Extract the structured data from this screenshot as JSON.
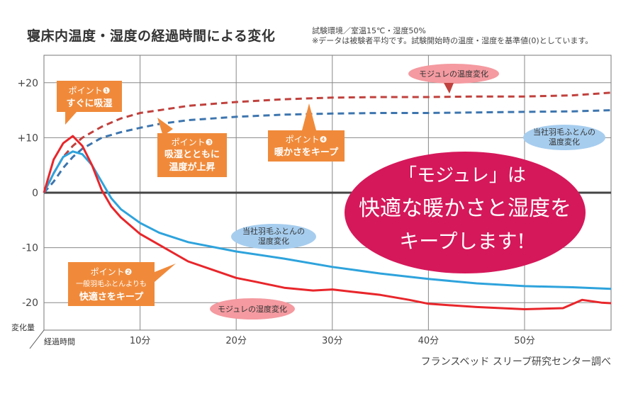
{
  "header": {
    "title": "寝床内温度・湿度の経過時間による変化",
    "note1": "試験環境／室温15℃・湿度50%",
    "note2": "※データは被験者平均です。試験開始時の温度・湿度を基準値(0)としています。"
  },
  "credit": "フランスベッド スリープ研究センター調べ",
  "callouts": {
    "p1_title": "ポイント❶",
    "p1_text": "すぐに吸湿",
    "p2_title": "ポイント❷",
    "p2_text1": "一般羽毛ふとんよりも",
    "p2_text2": "快適さをキープ",
    "p3_title": "ポイント❸",
    "p3_text1": "吸湿とともに",
    "p3_text2": "温度が上昇",
    "p4_title": "ポイント❹",
    "p4_text": "暖かさをキープ"
  },
  "ellipse": {
    "line1": "「モジュレ」は",
    "line2": "快適な暖かさと湿度を",
    "line3": "キープします!"
  },
  "colors": {
    "mojure": "#e8262b",
    "mojure_dash": "#c0413d",
    "other": "#2ea3dc",
    "other_dash": "#3d75ae",
    "orange": "#f08a3a",
    "pink": "#f49aa0",
    "blue_label": "#a6cdee",
    "magenta": "#d5185a"
  },
  "chart_data": {
    "type": "line",
    "title": "寝床内温度・湿度の経過時間による変化",
    "xlabel": "経過時間",
    "ylabel": "変化量",
    "xlim": [
      0,
      59
    ],
    "ylim": [
      -25,
      25
    ],
    "y_ticks": [
      "+20",
      "+10",
      "0",
      "-10",
      "-20"
    ],
    "y_tick_values": [
      20,
      10,
      0,
      -10,
      -20
    ],
    "x_ticks": [
      "10分",
      "20分",
      "30分",
      "40分",
      "50分"
    ],
    "x_tick_values": [
      10,
      20,
      30,
      40,
      50
    ],
    "grid": true,
    "series": [
      {
        "name": "モジュレの温度変化",
        "style": "dashed",
        "x": [
          0,
          1,
          2,
          3,
          4,
          5,
          6,
          8,
          10,
          12,
          15,
          20,
          25,
          30,
          35,
          40,
          45,
          50,
          55,
          59
        ],
        "y": [
          0,
          3.5,
          6.5,
          8.5,
          10,
          11,
          12,
          13.5,
          14.5,
          15,
          15.8,
          16.5,
          17,
          17.3,
          17.4,
          17.4,
          17.5,
          17.5,
          17.7,
          18.2
        ]
      },
      {
        "name": "当社羽毛ふとんの温度変化",
        "style": "dashed",
        "x": [
          0,
          1,
          2,
          3,
          4,
          5,
          6,
          8,
          10,
          12,
          15,
          20,
          25,
          30,
          35,
          40,
          45,
          50,
          55,
          59
        ],
        "y": [
          0,
          2,
          4.5,
          6.5,
          8,
          9,
          10,
          11,
          11.8,
          12.5,
          13.2,
          13.8,
          14.2,
          14.4,
          14.5,
          14.5,
          14.6,
          14.7,
          14.8,
          15
        ]
      },
      {
        "name": "当社羽毛ふとんの湿度変化",
        "style": "solid",
        "x": [
          0,
          1,
          2,
          3,
          4,
          5,
          6,
          7,
          8,
          10,
          12,
          15,
          20,
          25,
          30,
          35,
          40,
          45,
          50,
          55,
          59
        ],
        "y": [
          0,
          3.5,
          6.5,
          7.5,
          7,
          5,
          2,
          -1,
          -3,
          -5.5,
          -7.3,
          -9,
          -10.7,
          -12,
          -13.5,
          -14.7,
          -15.7,
          -16.5,
          -17,
          -17.2,
          -17.5
        ]
      },
      {
        "name": "モジュレの湿度変化",
        "style": "solid",
        "x": [
          0,
          1,
          2,
          3,
          4,
          5,
          6,
          7,
          8,
          10,
          12,
          15,
          20,
          22,
          25,
          28,
          30,
          32,
          35,
          38,
          40,
          45,
          50,
          54,
          56,
          58,
          59
        ],
        "y": [
          0,
          6,
          9,
          10.3,
          8.5,
          5,
          0.5,
          -2.5,
          -4.5,
          -7.5,
          -9.5,
          -12.5,
          -15.5,
          -16.2,
          -17.3,
          -17.8,
          -17.6,
          -18,
          -18.6,
          -19.5,
          -20.2,
          -20.8,
          -21.2,
          -21,
          -19.5,
          -20,
          -20.1
        ]
      }
    ]
  }
}
